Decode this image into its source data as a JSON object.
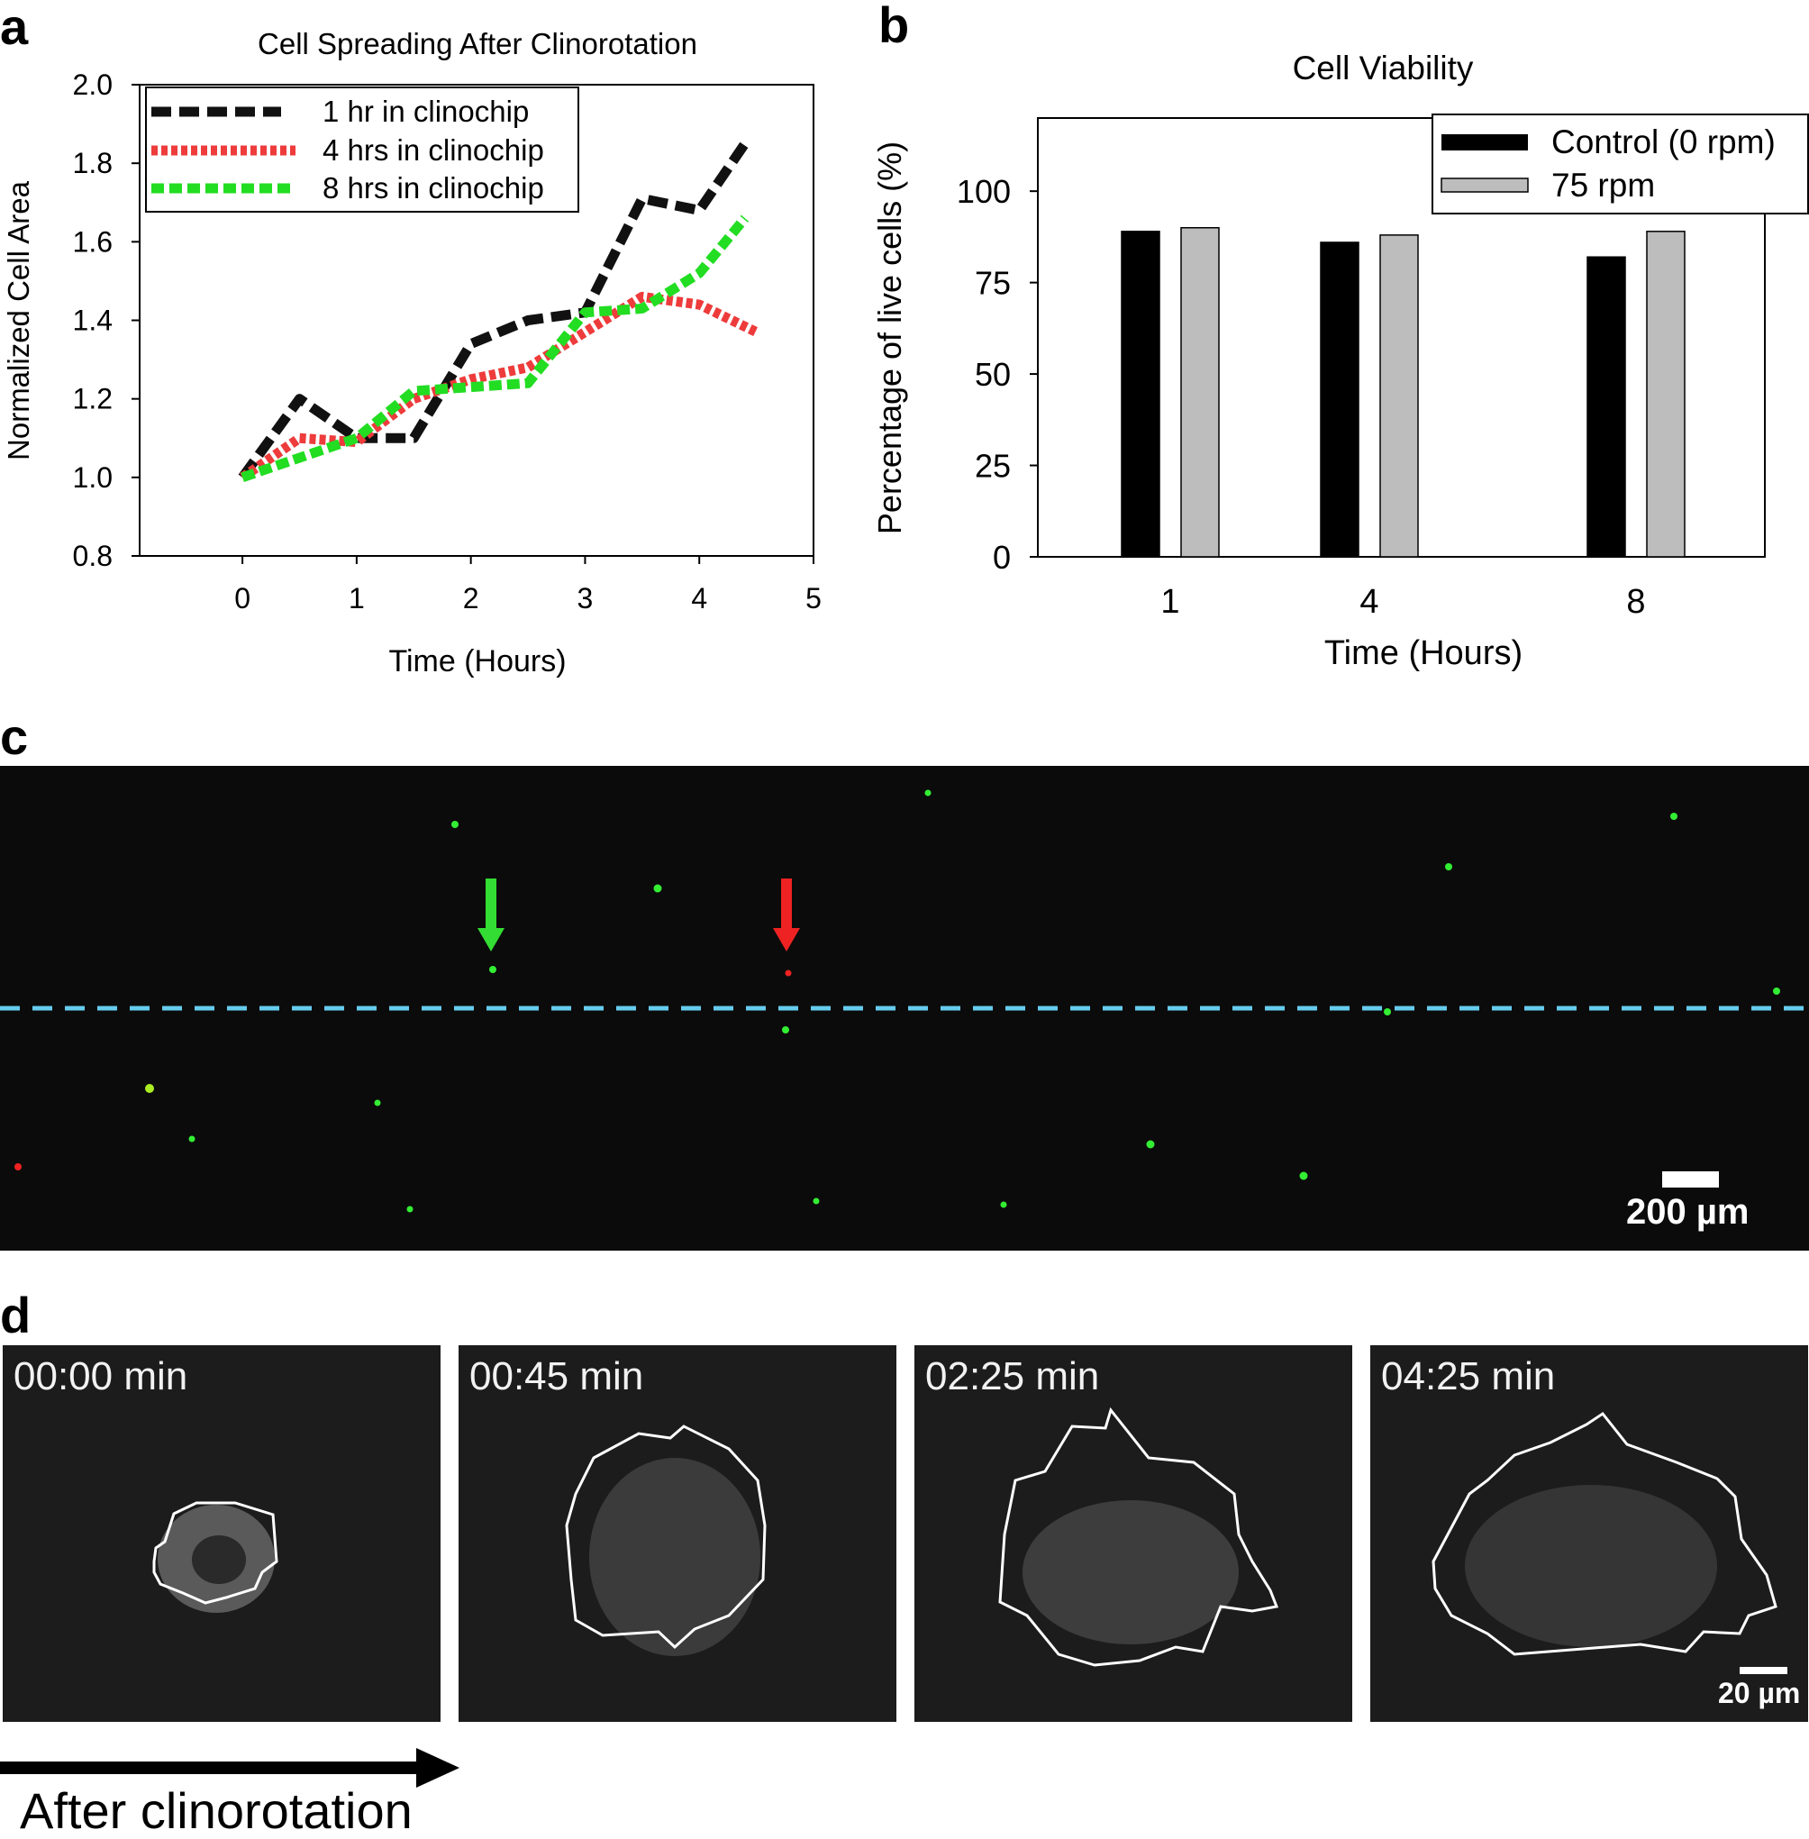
{
  "panels": {
    "a": {
      "letter": "a"
    },
    "b": {
      "letter": "b"
    },
    "c": {
      "letter": "c",
      "scale_bar": "200 µm"
    },
    "d": {
      "letter": "d",
      "frames": [
        "00:00 min",
        "00:45 min",
        "02:25 min",
        "04:25 min"
      ],
      "scale_bar": "20 µm",
      "arrow_label": "After clinorotation"
    }
  },
  "chart_data": [
    {
      "type": "line",
      "title": "Cell Spreading After Clinorotation",
      "xlabel": "Time (Hours)",
      "ylabel": "Normalized Cell Area",
      "xlim": [
        -0.9,
        5
      ],
      "ylim": [
        0.8,
        2.0
      ],
      "xticks": [
        "0",
        "1",
        "2",
        "3",
        "4",
        "5"
      ],
      "yticks": [
        "0.8",
        "1.0",
        "1.2",
        "1.4",
        "1.6",
        "1.8",
        "2.0"
      ],
      "legend_position": "top-left",
      "series": [
        {
          "name": "1 hr in clinochip",
          "color": "#111111",
          "x": [
            0,
            0.5,
            1.0,
            1.5,
            2.0,
            2.5,
            3.0,
            3.5,
            4.0,
            4.4
          ],
          "y": [
            1.0,
            1.2,
            1.1,
            1.1,
            1.34,
            1.4,
            1.42,
            1.71,
            1.68,
            1.85
          ]
        },
        {
          "name": "4 hrs in clinochip",
          "color": "#ee3b3b",
          "x": [
            0,
            0.5,
            1.0,
            1.5,
            2.0,
            2.5,
            3.0,
            3.5,
            4.0,
            4.5
          ],
          "y": [
            1.0,
            1.1,
            1.09,
            1.2,
            1.25,
            1.28,
            1.37,
            1.46,
            1.44,
            1.37
          ]
        },
        {
          "name": "8 hrs in clinochip",
          "color": "#22dd22",
          "x": [
            0,
            0.5,
            1.0,
            1.5,
            2.0,
            2.5,
            3.0,
            3.5,
            4.0,
            4.4
          ],
          "y": [
            1.0,
            1.05,
            1.1,
            1.22,
            1.23,
            1.24,
            1.42,
            1.43,
            1.52,
            1.66
          ]
        }
      ]
    },
    {
      "type": "bar",
      "title": "Cell Viability",
      "xlabel": "Time (Hours)",
      "ylabel": "Percentage of live cells (%)",
      "categories": [
        "1",
        "4",
        "8"
      ],
      "ylim": [
        0,
        120
      ],
      "yticks": [
        "0",
        "25",
        "50",
        "75",
        "100"
      ],
      "legend_position": "top-right",
      "series": [
        {
          "name": "Control (0 rpm)",
          "color": "#000000",
          "values": [
            89,
            86,
            82
          ]
        },
        {
          "name": "75 rpm",
          "color": "#bdbdbd",
          "values": [
            90,
            88,
            89
          ]
        }
      ]
    }
  ]
}
